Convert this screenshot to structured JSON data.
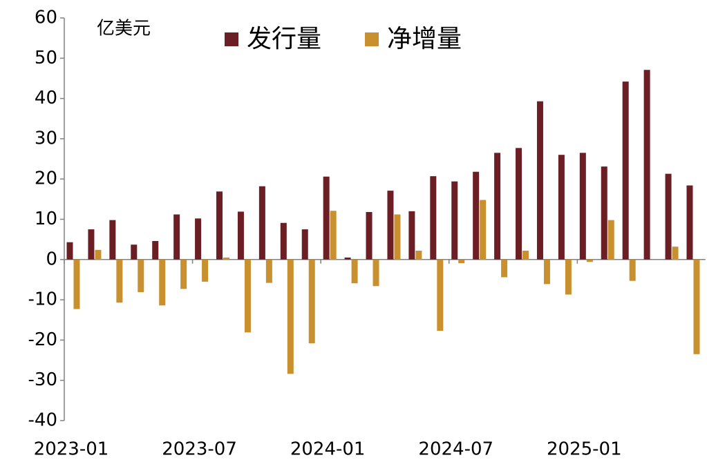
{
  "chart_data": {
    "type": "bar",
    "unit_label": "亿美元",
    "categories": [
      "2023-01",
      null,
      null,
      null,
      null,
      null,
      "2023-07",
      null,
      null,
      null,
      null,
      null,
      "2024-01",
      null,
      null,
      null,
      null,
      null,
      "2024-07",
      null,
      null,
      null,
      null,
      null,
      "2025-01",
      null,
      null,
      null,
      null,
      null
    ],
    "series": [
      {
        "name": "发行量",
        "color": "#6b1f24",
        "values": [
          4.3,
          7.5,
          9.8,
          3.7,
          4.6,
          11.2,
          10.2,
          16.9,
          11.9,
          18.2,
          9.1,
          7.5,
          20.6,
          0.5,
          11.8,
          17.1,
          12.0,
          20.7,
          19.4,
          21.8,
          26.5,
          27.7,
          39.3,
          26.0,
          26.5,
          23.1,
          44.2,
          47.1,
          21.3,
          18.4
        ]
      },
      {
        "name": "净增量",
        "color": "#c8902f",
        "values": [
          -12.3,
          2.4,
          -10.7,
          -8.1,
          -11.4,
          -7.3,
          -5.5,
          0.5,
          -18.1,
          -5.8,
          -28.4,
          -20.8,
          12.1,
          -5.9,
          -6.6,
          11.2,
          2.2,
          -17.7,
          -0.9,
          14.8,
          -4.4,
          2.2,
          -6.1,
          -8.7,
          -0.6,
          9.8,
          -5.3,
          0,
          3.2,
          -23.5
        ]
      }
    ],
    "ylim": [
      -40,
      60
    ],
    "yticks": [
      -40,
      -30,
      -20,
      -10,
      0,
      10,
      20,
      30,
      40,
      50,
      60
    ],
    "legend": "top",
    "grid": false
  }
}
